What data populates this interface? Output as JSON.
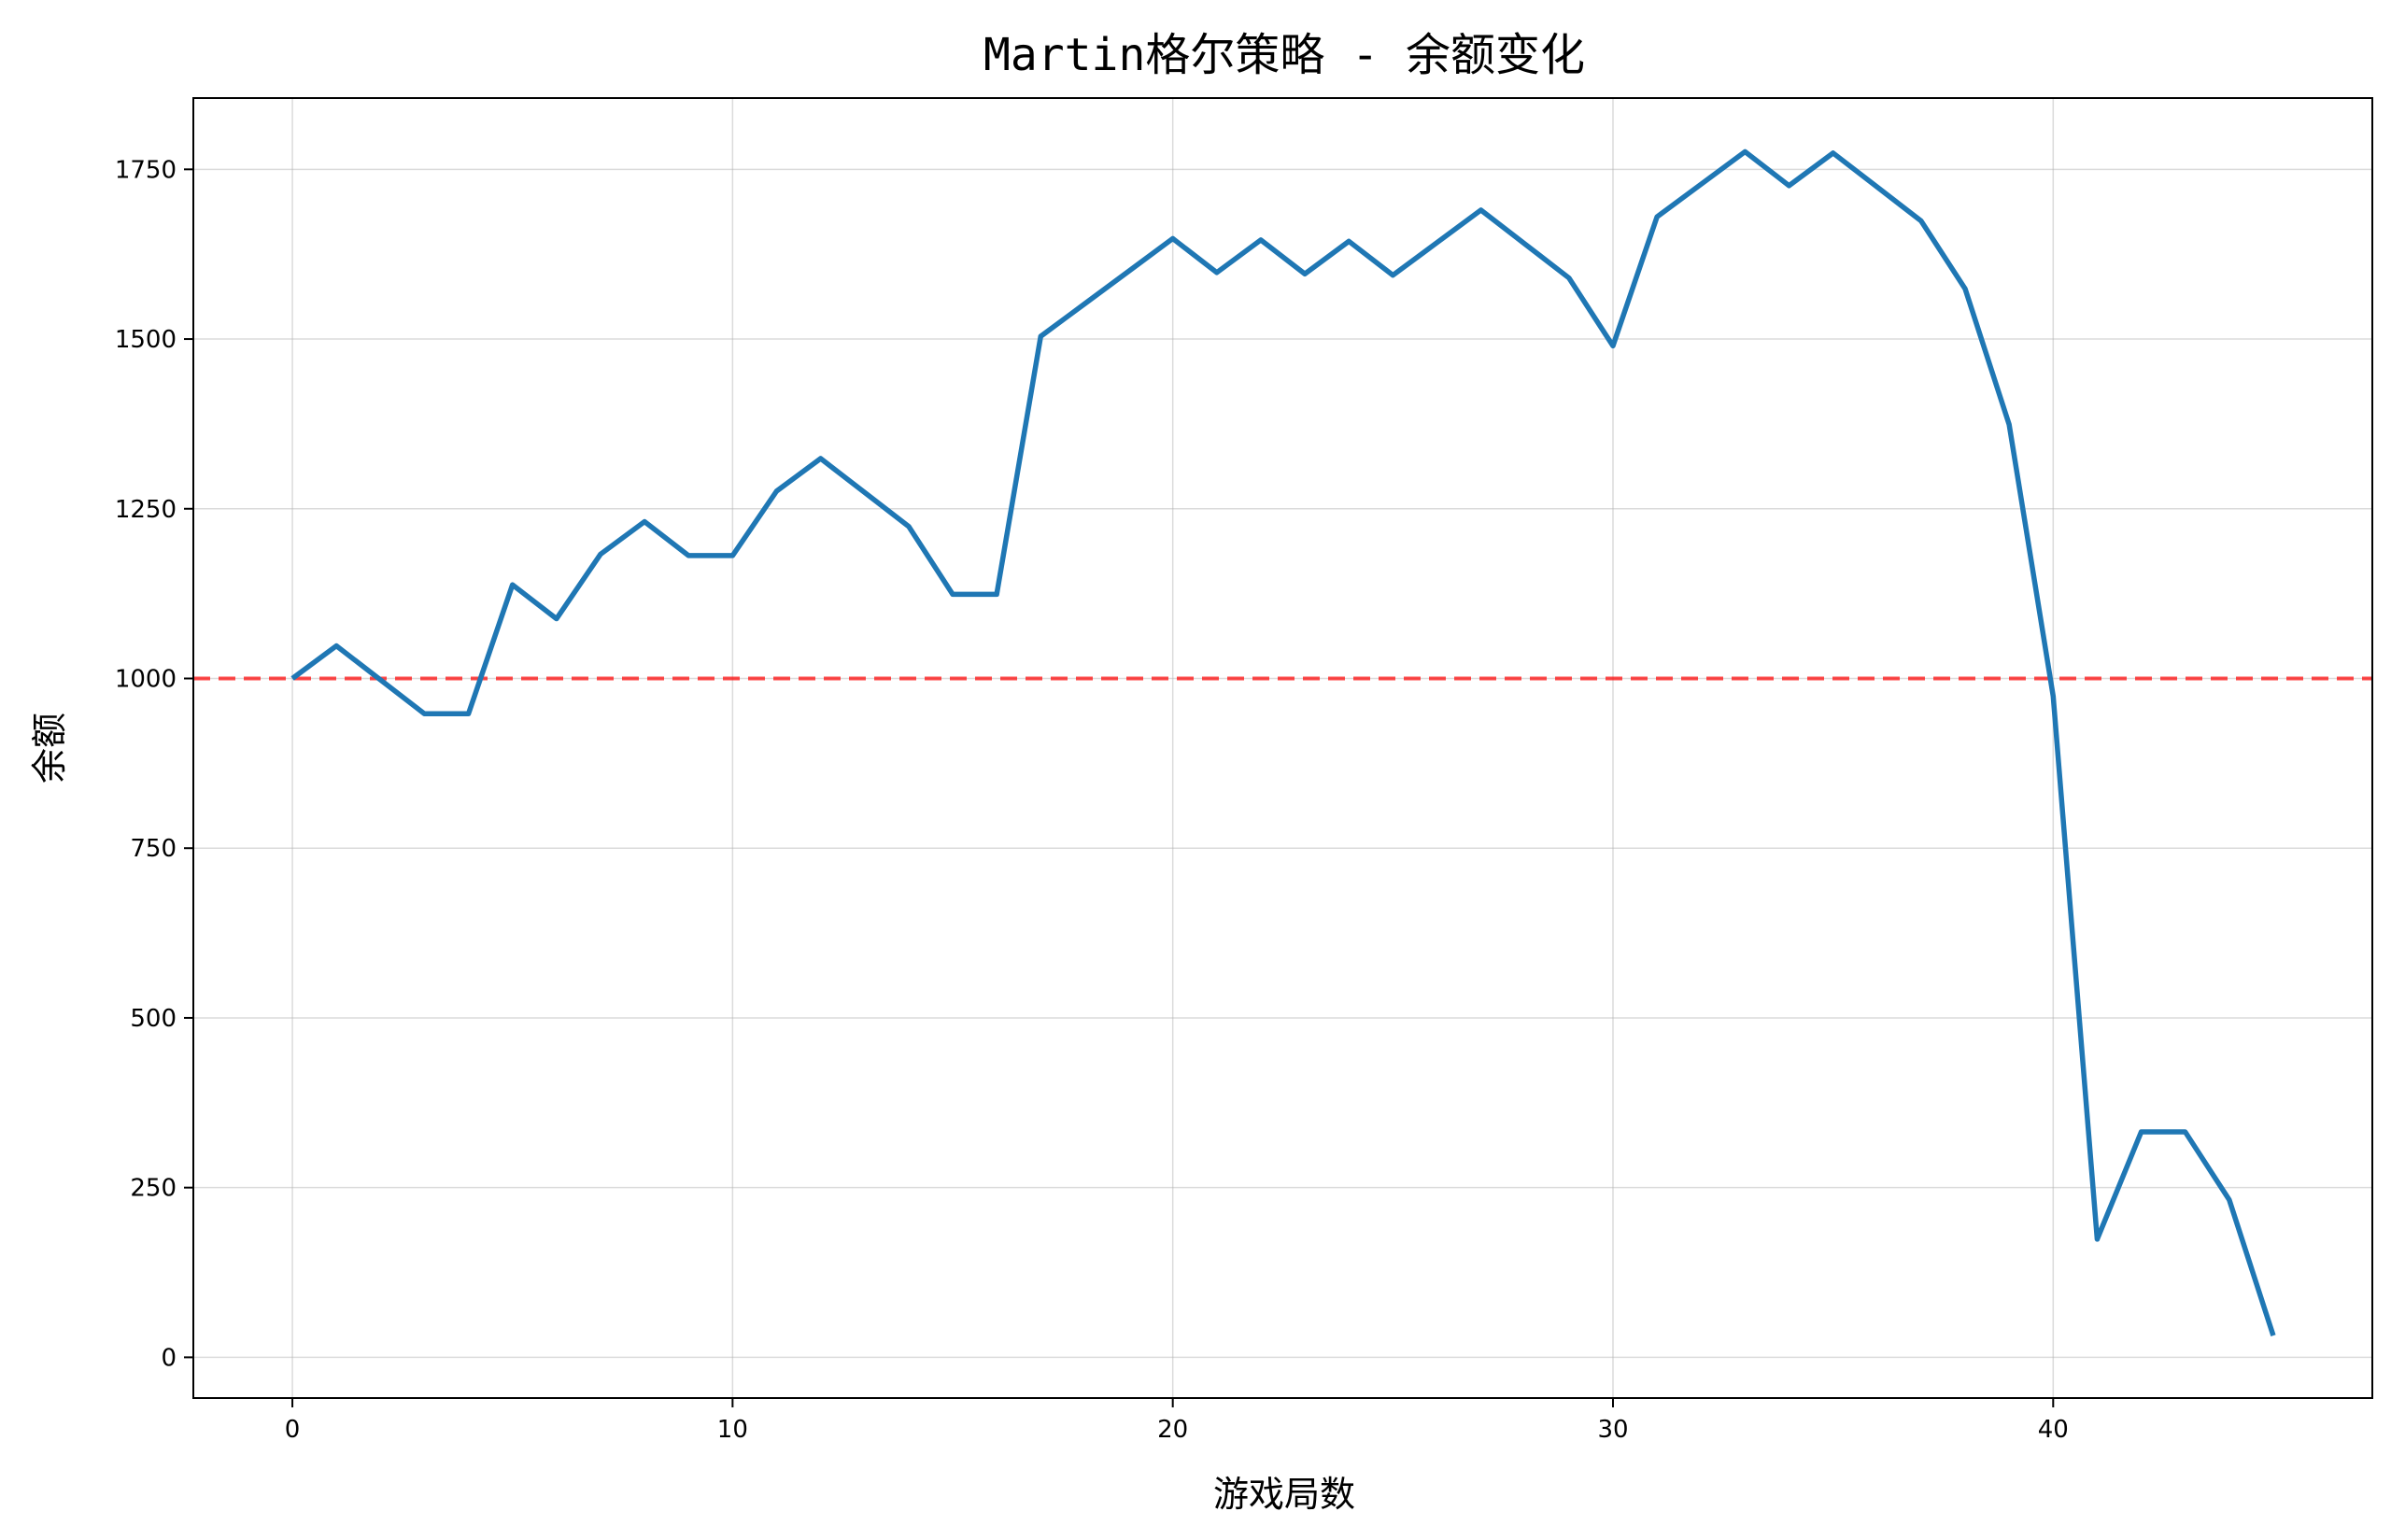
{
  "chart_data": {
    "type": "line",
    "title": "Martin格尔策略 - 余额变化",
    "xlabel": "游戏局数",
    "ylabel": "余额",
    "xlim": [
      -2.25,
      47.25
    ],
    "ylim": [
      -60,
      1855
    ],
    "xticks": [
      0,
      10,
      20,
      30,
      40
    ],
    "yticks": [
      0,
      250,
      500,
      750,
      1000,
      1250,
      1500,
      1750
    ],
    "grid": true,
    "series": [
      {
        "color": "#1f77b4",
        "x": [
          0,
          1,
          2,
          3,
          4,
          5,
          6,
          7,
          8,
          9,
          10,
          11,
          12,
          13,
          14,
          15,
          16,
          17,
          18,
          19,
          20,
          21,
          22,
          23,
          24,
          25,
          26,
          27,
          28,
          29,
          30,
          31,
          32,
          33,
          34,
          35,
          36,
          37,
          38,
          39,
          40,
          41,
          42,
          43,
          44,
          45
        ],
        "values": [
          1000,
          1048,
          998,
          948,
          948,
          1138,
          1088,
          1183,
          1231,
          1181,
          1181,
          1276,
          1324,
          1274,
          1224,
          1124,
          1124,
          1504,
          1552,
          1600,
          1648,
          1598,
          1646,
          1596,
          1644,
          1594,
          1642,
          1690,
          1640,
          1590,
          1490,
          1680,
          1728,
          1776,
          1726,
          1774,
          1724,
          1674,
          1574,
          1374,
          974,
          174,
          332,
          332,
          232,
          32
        ]
      }
    ],
    "reference_line": {
      "y": 1000,
      "color": "#ff0000",
      "style": "dashed"
    },
    "colors": {
      "line": "#1f77b4",
      "reference": "#ff0000",
      "grid": "#b0b0b0",
      "axes": "#000000"
    }
  }
}
